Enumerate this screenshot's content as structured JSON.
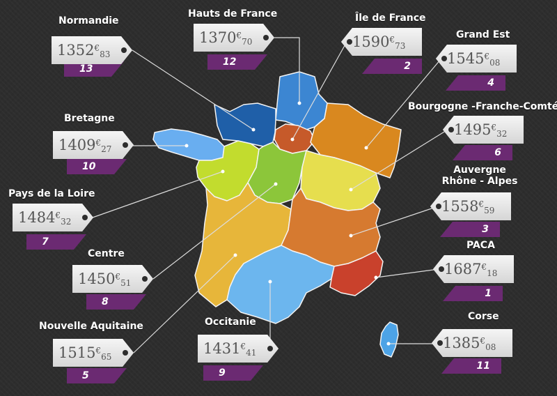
{
  "currency": "€",
  "colors": {
    "background": "#2d2d2d",
    "rank_band": "#6b2a72",
    "leader_line": "#dddddd"
  },
  "regions": [
    {
      "name": "Normandie",
      "euros": "1352",
      "cents": "83",
      "rank": "13",
      "color": "#1f5fa8"
    },
    {
      "name": "Hauts de France",
      "euros": "1370",
      "cents": "70",
      "rank": "12",
      "color": "#3c86d2"
    },
    {
      "name": "Île de France",
      "euros": "1590",
      "cents": "73",
      "rank": "2",
      "color": "#c65a2a"
    },
    {
      "name": "Grand Est",
      "euros": "1545",
      "cents": "08",
      "rank": "4",
      "color": "#d9881f"
    },
    {
      "name": "Bretagne",
      "euros": "1409",
      "cents": "27",
      "rank": "10",
      "color": "#69aef0"
    },
    {
      "name": "Bourgogne -Franche-Comté",
      "euros": "1495",
      "cents": "32",
      "rank": "6",
      "color": "#e6de4e"
    },
    {
      "name": "Auvergne Rhône - Alpes",
      "euros": "1558",
      "cents": "59",
      "rank": "3",
      "color": "#d67a30"
    },
    {
      "name": "Pays de la Loire",
      "euros": "1484",
      "cents": "32",
      "rank": "7",
      "color": "#c2dc2e"
    },
    {
      "name": "Centre",
      "euros": "1450",
      "cents": "51",
      "rank": "8",
      "color": "#8cc63a"
    },
    {
      "name": "PACA",
      "euros": "1687",
      "cents": "18",
      "rank": "1",
      "color": "#c9412c"
    },
    {
      "name": "Nouvelle Aquitaine",
      "euros": "1515",
      "cents": "65",
      "rank": "5",
      "color": "#e7b63a"
    },
    {
      "name": "Occitanie",
      "euros": "1431",
      "cents": "41",
      "rank": "9",
      "color": "#6cb6ee"
    },
    {
      "name": "Corse",
      "euros": "1385",
      "cents": "08",
      "rank": "11",
      "color": "#4da3e6"
    }
  ]
}
